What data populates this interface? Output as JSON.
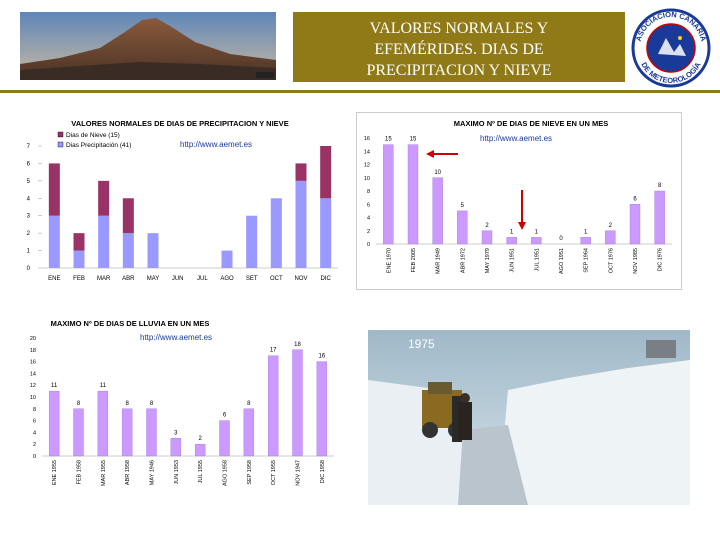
{
  "header": {
    "title_line1": "VALORES NORMALES Y",
    "title_line2": "EFEMÉRIDES. DIAS DE",
    "title_line3": "PRECIPITACION Y NIEVE",
    "accent_color": "#8f7a17"
  },
  "logo": {
    "text_top": "ASOCIACIÓN CANARIA",
    "text_bottom": "DE METEOROLOGÍA"
  },
  "photo": {
    "label": "1975"
  },
  "chart_data": [
    {
      "type": "bar",
      "title": "VALORES NORMALES DE DIAS DE PRECIPITACION Y NIEVE",
      "watermark": "http://www.aemet.es",
      "categories": [
        "ENE",
        "FEB",
        "MAR",
        "ABR",
        "MAY",
        "JUN",
        "JUL",
        "AGO",
        "SET",
        "OCT",
        "NOV",
        "DIC"
      ],
      "series": [
        {
          "name": "Dias de Nieve (15)",
          "color": "#993366",
          "values": [
            3,
            1,
            2,
            2,
            0,
            0,
            0,
            0,
            0,
            0,
            1,
            3
          ]
        },
        {
          "name": "Dias Precipitación (41)",
          "color": "#9999ff",
          "values": [
            3,
            1,
            3,
            2,
            2,
            0,
            0,
            1,
            3,
            4,
            5,
            4
          ]
        }
      ],
      "stacked": true,
      "ylim": [
        0,
        7
      ],
      "yticks": [
        "0",
        "1",
        "2",
        "3",
        "4",
        "5",
        "6",
        "7"
      ],
      "legend": "top-left"
    },
    {
      "type": "bar",
      "title": "MAXIMO Nº DE DIAS DE NIEVE EN UN MES",
      "watermark": "http://www.aemet.es",
      "color": "#cc99ff",
      "categories": [
        "ENE 1970",
        "FEB 2005",
        "MAR 1949",
        "ABR 1972",
        "MAY 1979",
        "JUN 1951",
        "JUL 1951",
        "AGO 1951",
        "SEP 1964",
        "OCT 1976",
        "NOV 1985",
        "DIC 1976"
      ],
      "values": [
        15,
        15,
        10,
        5,
        2,
        1,
        1,
        0,
        1,
        2,
        6,
        8
      ],
      "labels": [
        "15",
        "15",
        "10",
        "5",
        "2",
        "1",
        "1",
        "0",
        "1",
        "2",
        "6",
        "8"
      ],
      "ylim": [
        0,
        16
      ],
      "yticks": [
        "0",
        "2",
        "4",
        "6",
        "8",
        "10",
        "12",
        "14",
        "16"
      ]
    },
    {
      "type": "bar",
      "title": "MAXIMO Nº DE DIAS DE LLUVIA EN UN MES",
      "watermark": "http://www.aemet.es",
      "color": "#cc99ff",
      "categories": [
        "ENE 1955",
        "FEB 1958",
        "MAR 1955",
        "ABR 1958",
        "MAY 1946",
        "JUN 1953",
        "JUL 1955",
        "AGO 1958",
        "SEP 1958",
        "OCT 1955",
        "NOV 1947",
        "DIC 1958"
      ],
      "values": [
        11,
        8,
        11,
        8,
        8,
        3,
        2,
        6,
        8,
        17,
        18,
        16
      ],
      "labels": [
        "11",
        "8",
        "11",
        "8",
        "8",
        "3",
        "2",
        "6",
        "8",
        "17",
        "18",
        "16"
      ],
      "ylim": [
        0,
        20
      ],
      "yticks": [
        "0",
        "2",
        "4",
        "6",
        "8",
        "10",
        "12",
        "14",
        "16",
        "18",
        "20"
      ]
    }
  ]
}
